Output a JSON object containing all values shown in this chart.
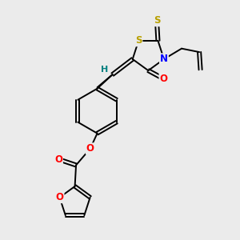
{
  "bg_color": "#ebebeb",
  "atom_colors": {
    "S": "#b8a000",
    "N": "#0000ff",
    "O": "#ff0000",
    "C": "#000000",
    "H": "#008080"
  },
  "bond_color": "#000000"
}
